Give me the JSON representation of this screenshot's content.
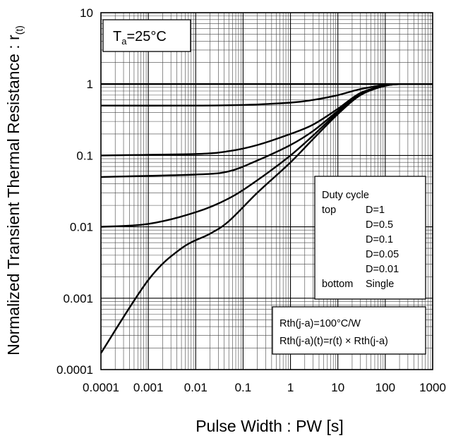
{
  "chart_data": {
    "type": "line",
    "title": "",
    "xlabel": "Pulse Width : PW [s]",
    "ylabel_main": "Normalized Transient Thermal Resistance : r",
    "ylabel_sub": "(t)",
    "x_scale": "log",
    "y_scale": "log",
    "xlim": [
      0.0001,
      1000
    ],
    "ylim": [
      0.0001,
      10
    ],
    "grid": true,
    "x_ticks": [
      "0.0001",
      "0.001",
      "0.01",
      "0.1",
      "1",
      "10",
      "100",
      "1000"
    ],
    "y_ticks": [
      "0.0001",
      "0.001",
      "0.01",
      "0.1",
      "1",
      "10"
    ],
    "annotation": {
      "main": "T",
      "sub": "a",
      "rest": "=25°C"
    },
    "legend": {
      "placement": "right",
      "title": "Duty cycle",
      "top_label": "top",
      "bottom_label": "bottom",
      "entries": [
        "D=1",
        "D=0.5",
        "D=0.1",
        "D=0.05",
        "D=0.01",
        "Single"
      ]
    },
    "notes": [
      "Rth(j-a)=100°C/W",
      "Rth(j-a)(t)=r(t) × Rth(j-a)"
    ],
    "series": [
      {
        "name": "D=1",
        "x": [
          0.0001,
          1000
        ],
        "y": [
          1,
          1
        ]
      },
      {
        "name": "D=0.5",
        "x": [
          0.0001,
          0.01,
          0.1,
          1,
          3,
          10,
          30,
          100,
          200
        ],
        "y": [
          0.5,
          0.5,
          0.51,
          0.55,
          0.6,
          0.7,
          0.85,
          0.97,
          1.0
        ]
      },
      {
        "name": "D=0.1",
        "x": [
          0.0001,
          0.01,
          0.05,
          0.2,
          1,
          3,
          10,
          30,
          100,
          200
        ],
        "y": [
          0.1,
          0.105,
          0.115,
          0.14,
          0.2,
          0.27,
          0.45,
          0.75,
          0.95,
          1.0
        ]
      },
      {
        "name": "D=0.05",
        "x": [
          0.0001,
          0.01,
          0.05,
          0.2,
          1,
          3,
          10,
          30,
          100,
          200
        ],
        "y": [
          0.05,
          0.054,
          0.06,
          0.085,
          0.14,
          0.22,
          0.42,
          0.74,
          0.95,
          1.0
        ]
      },
      {
        "name": "D=0.01",
        "x": [
          0.0001,
          0.001,
          0.01,
          0.05,
          0.2,
          1,
          3,
          10,
          30,
          100,
          200
        ],
        "y": [
          0.01,
          0.011,
          0.016,
          0.025,
          0.045,
          0.1,
          0.19,
          0.4,
          0.72,
          0.95,
          1.0
        ]
      },
      {
        "name": "Single",
        "x": [
          0.0001,
          0.001,
          0.005,
          0.02,
          0.05,
          0.2,
          1,
          3,
          10,
          30,
          100,
          200
        ],
        "y": [
          0.00017,
          0.0018,
          0.005,
          0.008,
          0.012,
          0.03,
          0.08,
          0.17,
          0.38,
          0.7,
          0.95,
          1.0
        ]
      }
    ]
  }
}
